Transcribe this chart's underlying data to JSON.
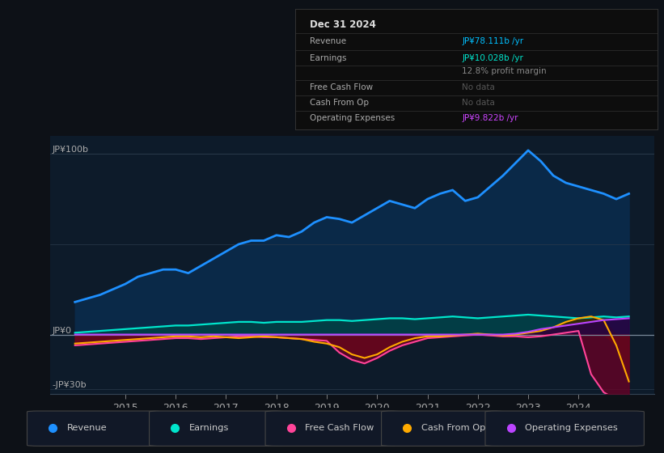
{
  "bg_color": "#0d1117",
  "plot_bg_color": "#0d1b2a",
  "ylabel_top": "JP¥100b",
  "ylabel_zero": "JP¥0",
  "ylabel_bot": "-JP¥30b",
  "x_ticks": [
    2015,
    2016,
    2017,
    2018,
    2019,
    2020,
    2021,
    2022,
    2023,
    2024
  ],
  "legend": [
    {
      "label": "Revenue",
      "color": "#1e90ff"
    },
    {
      "label": "Earnings",
      "color": "#00e5cc"
    },
    {
      "label": "Free Cash Flow",
      "color": "#ff4499"
    },
    {
      "label": "Cash From Op",
      "color": "#ffaa00"
    },
    {
      "label": "Operating Expenses",
      "color": "#bb44ff"
    }
  ],
  "revenue": [
    18,
    20,
    22,
    25,
    28,
    32,
    34,
    36,
    36,
    34,
    38,
    42,
    46,
    50,
    52,
    52,
    55,
    54,
    57,
    62,
    65,
    64,
    62,
    66,
    70,
    74,
    72,
    70,
    75,
    78,
    80,
    74,
    76,
    82,
    88,
    95,
    102,
    96,
    88,
    84,
    82,
    80,
    78,
    75,
    78
  ],
  "earnings": [
    1,
    1.5,
    2,
    2.5,
    3,
    3.5,
    4,
    4.5,
    5,
    5,
    5.5,
    6,
    6.5,
    7,
    7,
    6.5,
    7,
    7,
    7,
    7.5,
    8,
    8,
    7.5,
    8,
    8.5,
    9,
    9,
    8.5,
    9,
    9.5,
    10,
    9.5,
    9,
    9.5,
    10,
    10.5,
    11,
    10.5,
    10,
    9.5,
    9,
    9.5,
    10,
    9.5,
    10
  ],
  "free_cash_flow": [
    -6,
    -5.5,
    -5,
    -4.5,
    -4,
    -3.5,
    -3,
    -2.5,
    -2,
    -2,
    -2.5,
    -2,
    -1.5,
    -1,
    -1,
    -1.5,
    -1.5,
    -2,
    -2.5,
    -3,
    -3.5,
    -10,
    -14,
    -16,
    -13,
    -9,
    -6,
    -4,
    -2,
    -1.5,
    -1,
    -0.5,
    0,
    -0.5,
    -1,
    -1,
    -1.5,
    -1,
    0,
    1,
    2,
    -22,
    -32,
    -36,
    -38
  ],
  "cash_from_op": [
    -5,
    -4.5,
    -4,
    -3.5,
    -3,
    -2.5,
    -2,
    -1.5,
    -1,
    -1,
    -1.5,
    -1,
    -1.5,
    -2,
    -1.5,
    -1,
    -1.5,
    -2,
    -2.5,
    -4,
    -5,
    -7,
    -11,
    -13,
    -11,
    -7,
    -4,
    -2,
    -1,
    -1,
    -0.5,
    0,
    0.5,
    0,
    -0.5,
    0,
    1,
    2,
    4,
    7,
    9,
    10,
    8,
    -6,
    -26
  ],
  "operating_expenses": [
    0,
    0,
    0,
    0,
    0,
    0,
    0,
    0,
    0,
    0,
    0,
    0,
    0,
    0,
    0,
    0,
    0,
    0,
    0,
    0,
    0,
    0,
    0,
    0,
    0,
    0,
    0,
    0,
    0,
    0,
    0,
    0,
    0,
    0,
    0,
    0.5,
    1.5,
    3,
    4,
    5,
    6,
    7,
    8,
    8.5,
    9
  ],
  "xmin": 2013.5,
  "xmax": 2025.5,
  "ymin": -33,
  "ymax": 110
}
